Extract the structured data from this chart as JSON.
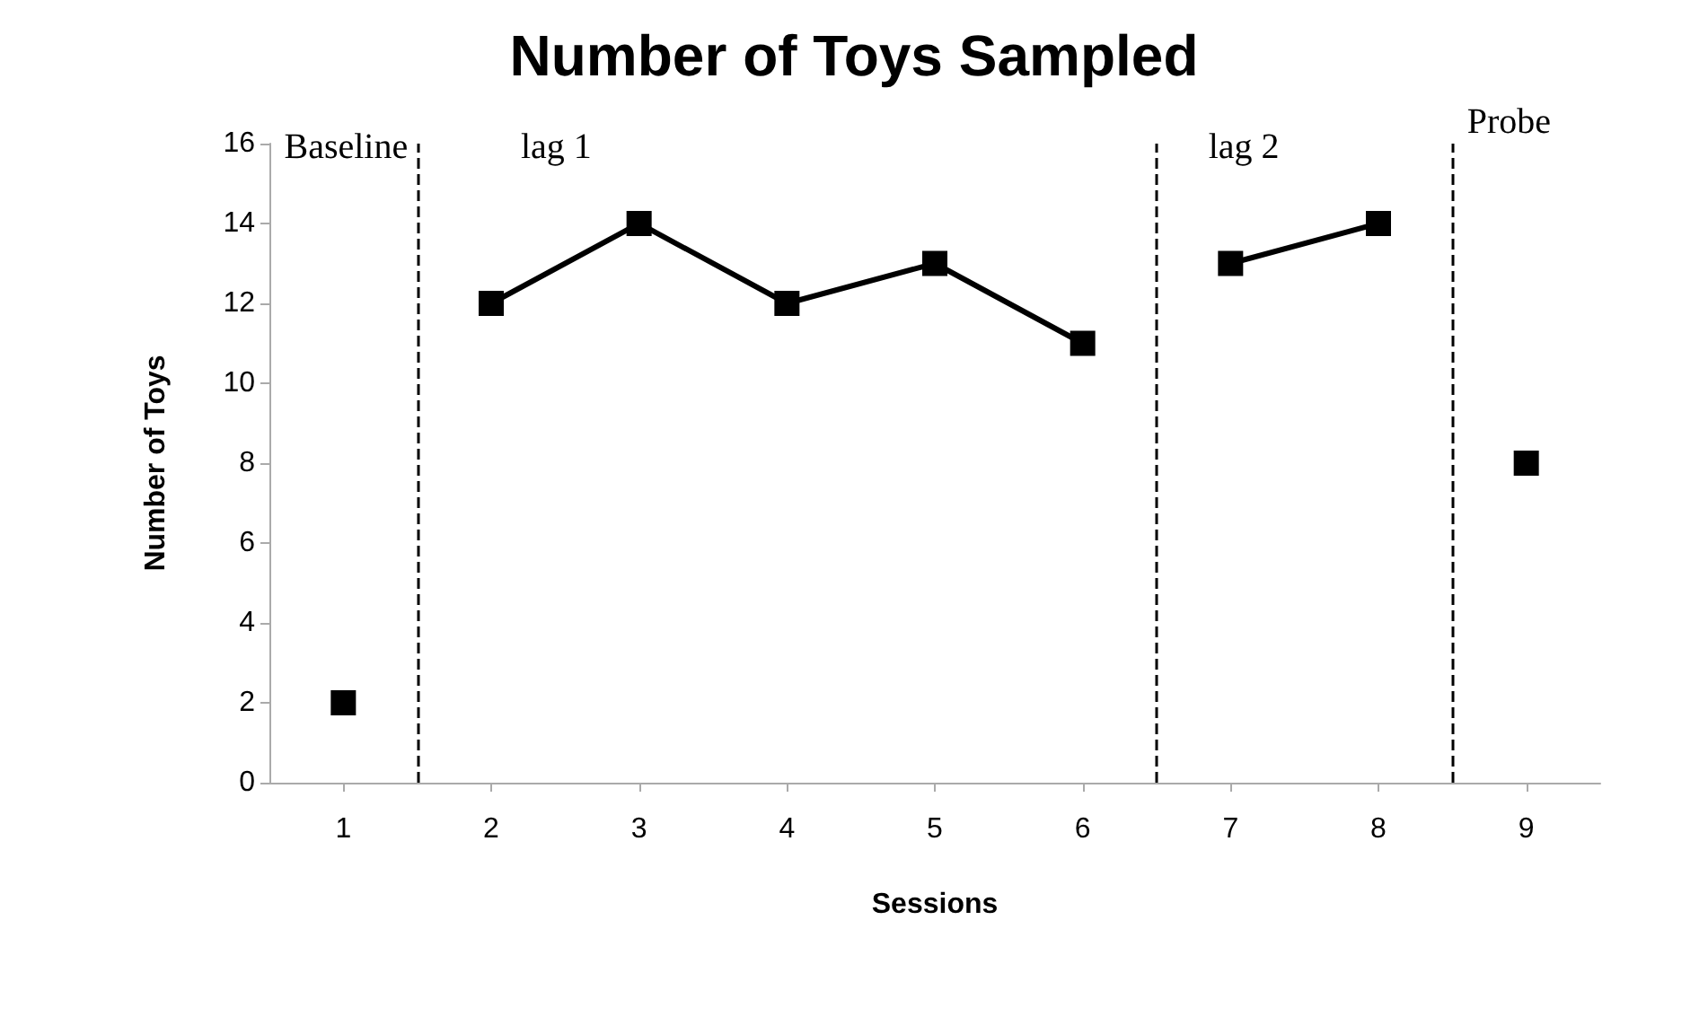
{
  "chart_data": {
    "type": "line",
    "title": "Number of Toys Sampled",
    "xlabel": "Sessions",
    "ylabel": "Number of Toys",
    "xlim": [
      0.5,
      9.5
    ],
    "xticks": [
      1,
      2,
      3,
      4,
      5,
      6,
      7,
      8,
      9
    ],
    "ylim": [
      0,
      16
    ],
    "yticks": [
      0,
      2,
      4,
      6,
      8,
      10,
      12,
      14,
      16
    ],
    "grid": false,
    "marker": "square",
    "line_style": "solid",
    "series": [
      {
        "color": "#000000",
        "x": [
          1
        ],
        "values": [
          2
        ]
      },
      {
        "color": "#000000",
        "x": [
          2,
          3,
          4,
          5,
          6
        ],
        "values": [
          12,
          14,
          12,
          13,
          11
        ]
      },
      {
        "color": "#000000",
        "x": [
          7,
          8
        ],
        "values": [
          13,
          14
        ]
      },
      {
        "color": "#000000",
        "x": [
          9
        ],
        "values": [
          8
        ]
      }
    ],
    "ref_lines": [
      {
        "axis": "x",
        "value": 1.5,
        "color": "#000000",
        "line_style": "dashed"
      },
      {
        "axis": "x",
        "value": 6.5,
        "color": "#000000",
        "line_style": "dashed"
      },
      {
        "axis": "x",
        "value": 8.5,
        "color": "#000000",
        "line_style": "dashed"
      }
    ],
    "annotations": [
      "Baseline",
      "lag 1",
      "lag 2",
      "Probe"
    ]
  }
}
